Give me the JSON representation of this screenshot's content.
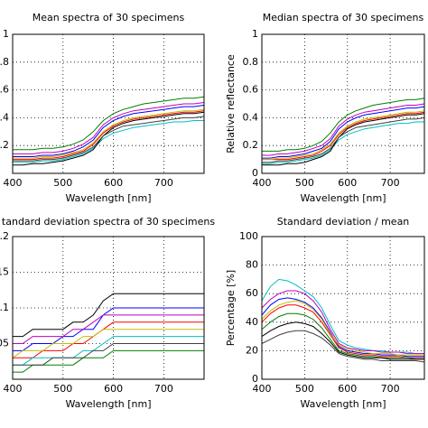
{
  "chart_data": [
    {
      "type": "line",
      "title": "Mean spectra of 30 specimens",
      "x_label": "Wavelength [nm]",
      "x": [
        400,
        420,
        440,
        460,
        480,
        500,
        520,
        540,
        560,
        580,
        600,
        620,
        640,
        660,
        680,
        700,
        720,
        740,
        760,
        780
      ],
      "xlim": [
        400,
        780
      ],
      "xticks": [
        400,
        500,
        600,
        700
      ],
      "ylim": [
        0,
        1
      ],
      "yticks": [
        {
          "value": 0.2,
          "label": ".2"
        },
        {
          "value": 0.4,
          "label": ".4"
        },
        {
          "value": 0.6,
          "label": ".6"
        },
        {
          "value": 0.8,
          "label": ".8"
        },
        1
      ],
      "grid": true,
      "series": [
        {
          "color": "#008000",
          "values": [
            0.17,
            0.17,
            0.17,
            0.18,
            0.18,
            0.19,
            0.21,
            0.24,
            0.3,
            0.38,
            0.43,
            0.46,
            0.48,
            0.5,
            0.51,
            0.52,
            0.53,
            0.54,
            0.54,
            0.55
          ]
        },
        {
          "color": "#0000ff",
          "values": [
            0.12,
            0.12,
            0.12,
            0.13,
            0.13,
            0.14,
            0.16,
            0.19,
            0.24,
            0.33,
            0.38,
            0.41,
            0.43,
            0.44,
            0.45,
            0.46,
            0.47,
            0.48,
            0.48,
            0.49
          ]
        },
        {
          "color": "#ff0000",
          "values": [
            0.1,
            0.1,
            0.1,
            0.11,
            0.11,
            0.12,
            0.14,
            0.16,
            0.21,
            0.29,
            0.34,
            0.37,
            0.39,
            0.4,
            0.41,
            0.42,
            0.43,
            0.44,
            0.44,
            0.45
          ]
        },
        {
          "color": "#00bfbf",
          "values": [
            0.08,
            0.08,
            0.08,
            0.09,
            0.09,
            0.1,
            0.12,
            0.14,
            0.18,
            0.25,
            0.29,
            0.31,
            0.33,
            0.34,
            0.35,
            0.36,
            0.37,
            0.37,
            0.38,
            0.38
          ]
        },
        {
          "color": "#bf00bf",
          "values": [
            0.14,
            0.14,
            0.14,
            0.15,
            0.15,
            0.16,
            0.18,
            0.21,
            0.26,
            0.35,
            0.4,
            0.43,
            0.45,
            0.46,
            0.47,
            0.48,
            0.49,
            0.5,
            0.5,
            0.51
          ]
        },
        {
          "color": "#000000",
          "values": [
            0.06,
            0.06,
            0.07,
            0.07,
            0.08,
            0.09,
            0.11,
            0.13,
            0.17,
            0.27,
            0.33,
            0.36,
            0.38,
            0.39,
            0.4,
            0.41,
            0.42,
            0.43,
            0.43,
            0.44
          ]
        },
        {
          "color": "#bfbf00",
          "values": [
            0.11,
            0.11,
            0.11,
            0.12,
            0.12,
            0.13,
            0.15,
            0.17,
            0.22,
            0.3,
            0.35,
            0.38,
            0.4,
            0.41,
            0.42,
            0.43,
            0.44,
            0.45,
            0.45,
            0.46
          ]
        },
        {
          "color": "#404040",
          "values": [
            0.09,
            0.09,
            0.09,
            0.1,
            0.1,
            0.11,
            0.13,
            0.15,
            0.19,
            0.27,
            0.31,
            0.34,
            0.35,
            0.36,
            0.37,
            0.38,
            0.39,
            0.4,
            0.4,
            0.41
          ]
        }
      ]
    },
    {
      "type": "line",
      "title": "Median spectra of 30 specimens",
      "x_label": "Wavelength [nm]",
      "y_label": "Relative reflectance",
      "x": [
        400,
        420,
        440,
        460,
        480,
        500,
        520,
        540,
        560,
        580,
        600,
        620,
        640,
        660,
        680,
        700,
        720,
        740,
        760,
        780
      ],
      "xlim": [
        400,
        780
      ],
      "xticks": [
        400,
        500,
        600,
        700
      ],
      "ylim": [
        0,
        1
      ],
      "yticks": [
        0,
        0.2,
        0.4,
        0.6,
        0.8,
        1
      ],
      "grid": true,
      "series": [
        {
          "color": "#008000",
          "values": [
            0.16,
            0.16,
            0.16,
            0.17,
            0.17,
            0.18,
            0.2,
            0.23,
            0.29,
            0.37,
            0.42,
            0.45,
            0.47,
            0.49,
            0.5,
            0.51,
            0.52,
            0.53,
            0.53,
            0.54
          ]
        },
        {
          "color": "#0000ff",
          "values": [
            0.11,
            0.11,
            0.12,
            0.12,
            0.13,
            0.14,
            0.16,
            0.18,
            0.23,
            0.32,
            0.37,
            0.4,
            0.42,
            0.43,
            0.44,
            0.45,
            0.46,
            0.47,
            0.47,
            0.48
          ]
        },
        {
          "color": "#ff0000",
          "values": [
            0.1,
            0.1,
            0.1,
            0.1,
            0.11,
            0.12,
            0.13,
            0.16,
            0.2,
            0.28,
            0.33,
            0.36,
            0.38,
            0.39,
            0.4,
            0.41,
            0.42,
            0.43,
            0.43,
            0.44
          ]
        },
        {
          "color": "#00bfbf",
          "values": [
            0.07,
            0.07,
            0.08,
            0.08,
            0.09,
            0.1,
            0.11,
            0.13,
            0.17,
            0.24,
            0.28,
            0.3,
            0.32,
            0.33,
            0.34,
            0.35,
            0.36,
            0.36,
            0.37,
            0.37
          ]
        },
        {
          "color": "#bf00bf",
          "values": [
            0.13,
            0.13,
            0.14,
            0.14,
            0.15,
            0.16,
            0.18,
            0.2,
            0.25,
            0.34,
            0.39,
            0.42,
            0.44,
            0.45,
            0.46,
            0.47,
            0.48,
            0.49,
            0.49,
            0.5
          ]
        },
        {
          "color": "#000000",
          "values": [
            0.06,
            0.06,
            0.06,
            0.07,
            0.07,
            0.08,
            0.1,
            0.12,
            0.16,
            0.26,
            0.32,
            0.35,
            0.37,
            0.38,
            0.39,
            0.4,
            0.41,
            0.42,
            0.42,
            0.43
          ]
        },
        {
          "color": "#bfbf00",
          "values": [
            0.1,
            0.1,
            0.11,
            0.11,
            0.12,
            0.13,
            0.14,
            0.17,
            0.21,
            0.29,
            0.34,
            0.37,
            0.39,
            0.4,
            0.41,
            0.42,
            0.43,
            0.44,
            0.44,
            0.45
          ]
        },
        {
          "color": "#404040",
          "values": [
            0.08,
            0.08,
            0.09,
            0.09,
            0.1,
            0.11,
            0.12,
            0.14,
            0.18,
            0.26,
            0.3,
            0.33,
            0.34,
            0.35,
            0.36,
            0.37,
            0.38,
            0.39,
            0.39,
            0.4
          ]
        }
      ]
    },
    {
      "type": "line",
      "title": "tandard deviation spectra of 30 specimens",
      "x_label": "Wavelength [nm]",
      "x": [
        400,
        420,
        440,
        460,
        480,
        500,
        520,
        540,
        560,
        580,
        600,
        620,
        640,
        660,
        680,
        700,
        720,
        740,
        760,
        780
      ],
      "xlim": [
        400,
        780
      ],
      "xticks": [
        400,
        500,
        600,
        700
      ],
      "ylim": [
        0,
        0.2
      ],
      "yticks": [
        {
          "value": 0.05,
          "label": ".05"
        },
        {
          "value": 0.1,
          "label": ".1"
        },
        {
          "value": 0.15,
          "label": ".15"
        },
        {
          "value": 0.2,
          "label": ".2"
        }
      ],
      "grid": true,
      "series": [
        {
          "color": "#000000",
          "values": [
            0.06,
            0.06,
            0.07,
            0.07,
            0.07,
            0.07,
            0.08,
            0.08,
            0.09,
            0.11,
            0.12,
            0.12,
            0.12,
            0.12,
            0.12,
            0.12,
            0.12,
            0.12,
            0.12,
            0.12
          ]
        },
        {
          "color": "#0000ff",
          "values": [
            0.04,
            0.04,
            0.05,
            0.05,
            0.05,
            0.06,
            0.06,
            0.07,
            0.07,
            0.09,
            0.1,
            0.1,
            0.1,
            0.1,
            0.1,
            0.1,
            0.1,
            0.1,
            0.1,
            0.1
          ]
        },
        {
          "color": "#ff0000",
          "values": [
            0.03,
            0.03,
            0.03,
            0.04,
            0.04,
            0.04,
            0.05,
            0.05,
            0.06,
            0.07,
            0.08,
            0.08,
            0.08,
            0.08,
            0.08,
            0.08,
            0.08,
            0.08,
            0.08,
            0.08
          ]
        },
        {
          "color": "#00bfbf",
          "values": [
            0.02,
            0.02,
            0.03,
            0.03,
            0.03,
            0.03,
            0.03,
            0.04,
            0.04,
            0.05,
            0.06,
            0.06,
            0.06,
            0.06,
            0.06,
            0.06,
            0.06,
            0.06,
            0.06,
            0.06
          ]
        },
        {
          "color": "#bf00bf",
          "values": [
            0.05,
            0.05,
            0.06,
            0.06,
            0.06,
            0.06,
            0.07,
            0.07,
            0.08,
            0.09,
            0.09,
            0.09,
            0.09,
            0.09,
            0.09,
            0.09,
            0.09,
            0.09,
            0.09,
            0.09
          ]
        },
        {
          "color": "#008000",
          "values": [
            0.01,
            0.01,
            0.02,
            0.02,
            0.02,
            0.02,
            0.02,
            0.03,
            0.03,
            0.03,
            0.04,
            0.04,
            0.04,
            0.04,
            0.04,
            0.04,
            0.04,
            0.04,
            0.04,
            0.04
          ]
        },
        {
          "color": "#bfbf00",
          "values": [
            0.03,
            0.04,
            0.04,
            0.04,
            0.05,
            0.05,
            0.05,
            0.06,
            0.06,
            0.07,
            0.07,
            0.07,
            0.07,
            0.07,
            0.07,
            0.07,
            0.07,
            0.07,
            0.07,
            0.07
          ]
        },
        {
          "color": "#404040",
          "values": [
            0.02,
            0.02,
            0.02,
            0.02,
            0.03,
            0.03,
            0.03,
            0.03,
            0.04,
            0.04,
            0.05,
            0.05,
            0.05,
            0.05,
            0.05,
            0.05,
            0.05,
            0.05,
            0.05,
            0.05
          ]
        }
      ]
    },
    {
      "type": "line",
      "title": "Standard deviation / mean",
      "x_label": "Wavelength [nm]",
      "y_label": "Percentage [%]",
      "x": [
        400,
        420,
        440,
        460,
        480,
        500,
        520,
        540,
        560,
        580,
        600,
        620,
        640,
        660,
        680,
        700,
        720,
        740,
        760,
        780
      ],
      "xlim": [
        400,
        780
      ],
      "xticks": [
        400,
        500,
        600,
        700
      ],
      "ylim": [
        0,
        100
      ],
      "yticks": [
        0,
        20,
        40,
        60,
        80,
        100
      ],
      "grid": true,
      "series": [
        {
          "color": "#00bfbf",
          "values": [
            55,
            65,
            70,
            69,
            66,
            62,
            58,
            50,
            38,
            27,
            24,
            22,
            21,
            20,
            20,
            19,
            19,
            19,
            18,
            18
          ]
        },
        {
          "color": "#0000ff",
          "values": [
            45,
            52,
            56,
            57,
            56,
            54,
            50,
            43,
            33,
            23,
            20,
            19,
            18,
            18,
            17,
            17,
            17,
            16,
            16,
            16
          ]
        },
        {
          "color": "#ff0000",
          "values": [
            40,
            46,
            50,
            52,
            52,
            50,
            47,
            40,
            31,
            22,
            19,
            18,
            17,
            17,
            16,
            16,
            16,
            15,
            15,
            15
          ]
        },
        {
          "color": "#008000",
          "values": [
            35,
            40,
            44,
            46,
            46,
            45,
            42,
            36,
            28,
            20,
            18,
            17,
            16,
            16,
            15,
            15,
            15,
            15,
            14,
            14
          ]
        },
        {
          "color": "#bf00bf",
          "values": [
            50,
            56,
            60,
            62,
            62,
            60,
            55,
            47,
            35,
            25,
            22,
            21,
            20,
            20,
            19,
            19,
            19,
            18,
            18,
            18
          ]
        },
        {
          "color": "#000000",
          "values": [
            30,
            34,
            37,
            39,
            40,
            39,
            37,
            32,
            26,
            19,
            17,
            16,
            15,
            15,
            15,
            14,
            14,
            14,
            14,
            14
          ]
        },
        {
          "color": "#bfbf00",
          "values": [
            42,
            48,
            52,
            54,
            55,
            53,
            49,
            42,
            32,
            24,
            21,
            20,
            19,
            18,
            18,
            18,
            17,
            17,
            17,
            17
          ]
        },
        {
          "color": "#404040",
          "values": [
            25,
            28,
            31,
            33,
            34,
            34,
            32,
            29,
            24,
            18,
            16,
            15,
            14,
            14,
            13,
            13,
            13,
            13,
            13,
            12
          ]
        }
      ]
    }
  ]
}
